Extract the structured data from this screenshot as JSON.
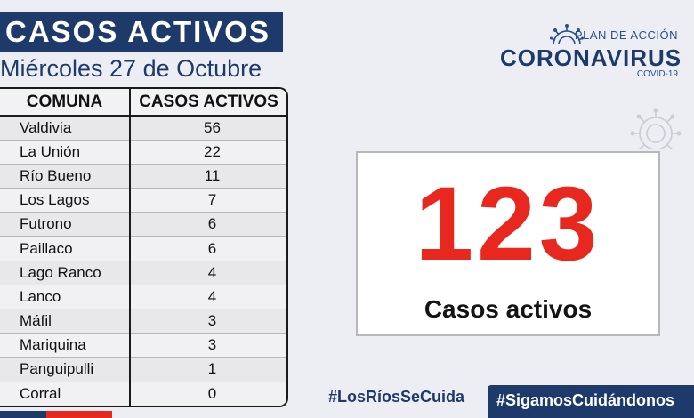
{
  "header": {
    "title": "CASOS ACTIVOS",
    "date": "Miércoles 27 de Octubre"
  },
  "table": {
    "col_comuna": "COMUNA",
    "col_casos": "CASOS ACTIVOS",
    "rows": [
      {
        "comuna": "Valdivia",
        "casos": "56"
      },
      {
        "comuna": "La Unión",
        "casos": "22"
      },
      {
        "comuna": "Río Bueno",
        "casos": "11"
      },
      {
        "comuna": "Los Lagos",
        "casos": "7"
      },
      {
        "comuna": "Futrono",
        "casos": "6"
      },
      {
        "comuna": "Paillaco",
        "casos": "6"
      },
      {
        "comuna": "Lago Ranco",
        "casos": "4"
      },
      {
        "comuna": "Lanco",
        "casos": "4"
      },
      {
        "comuna": "Máfil",
        "casos": "3"
      },
      {
        "comuna": "Mariquina",
        "casos": "3"
      },
      {
        "comuna": "Panguipulli",
        "casos": "1"
      },
      {
        "comuna": "Corral",
        "casos": "0"
      }
    ]
  },
  "logo": {
    "plan": "PLAN DE ACCIÓN",
    "main": "CORONAVIRUS",
    "sub": "COVID-19",
    "icon": "virus-icon"
  },
  "total": {
    "number": "123",
    "label": "Casos activos"
  },
  "footer": {
    "hashtag_1": "#LosRíosSeCuida",
    "hashtag_2": "#SigamosCuidándonos"
  },
  "colors": {
    "navy": "#1d3a6b",
    "red": "#e8281f",
    "background": "#eceef3"
  }
}
